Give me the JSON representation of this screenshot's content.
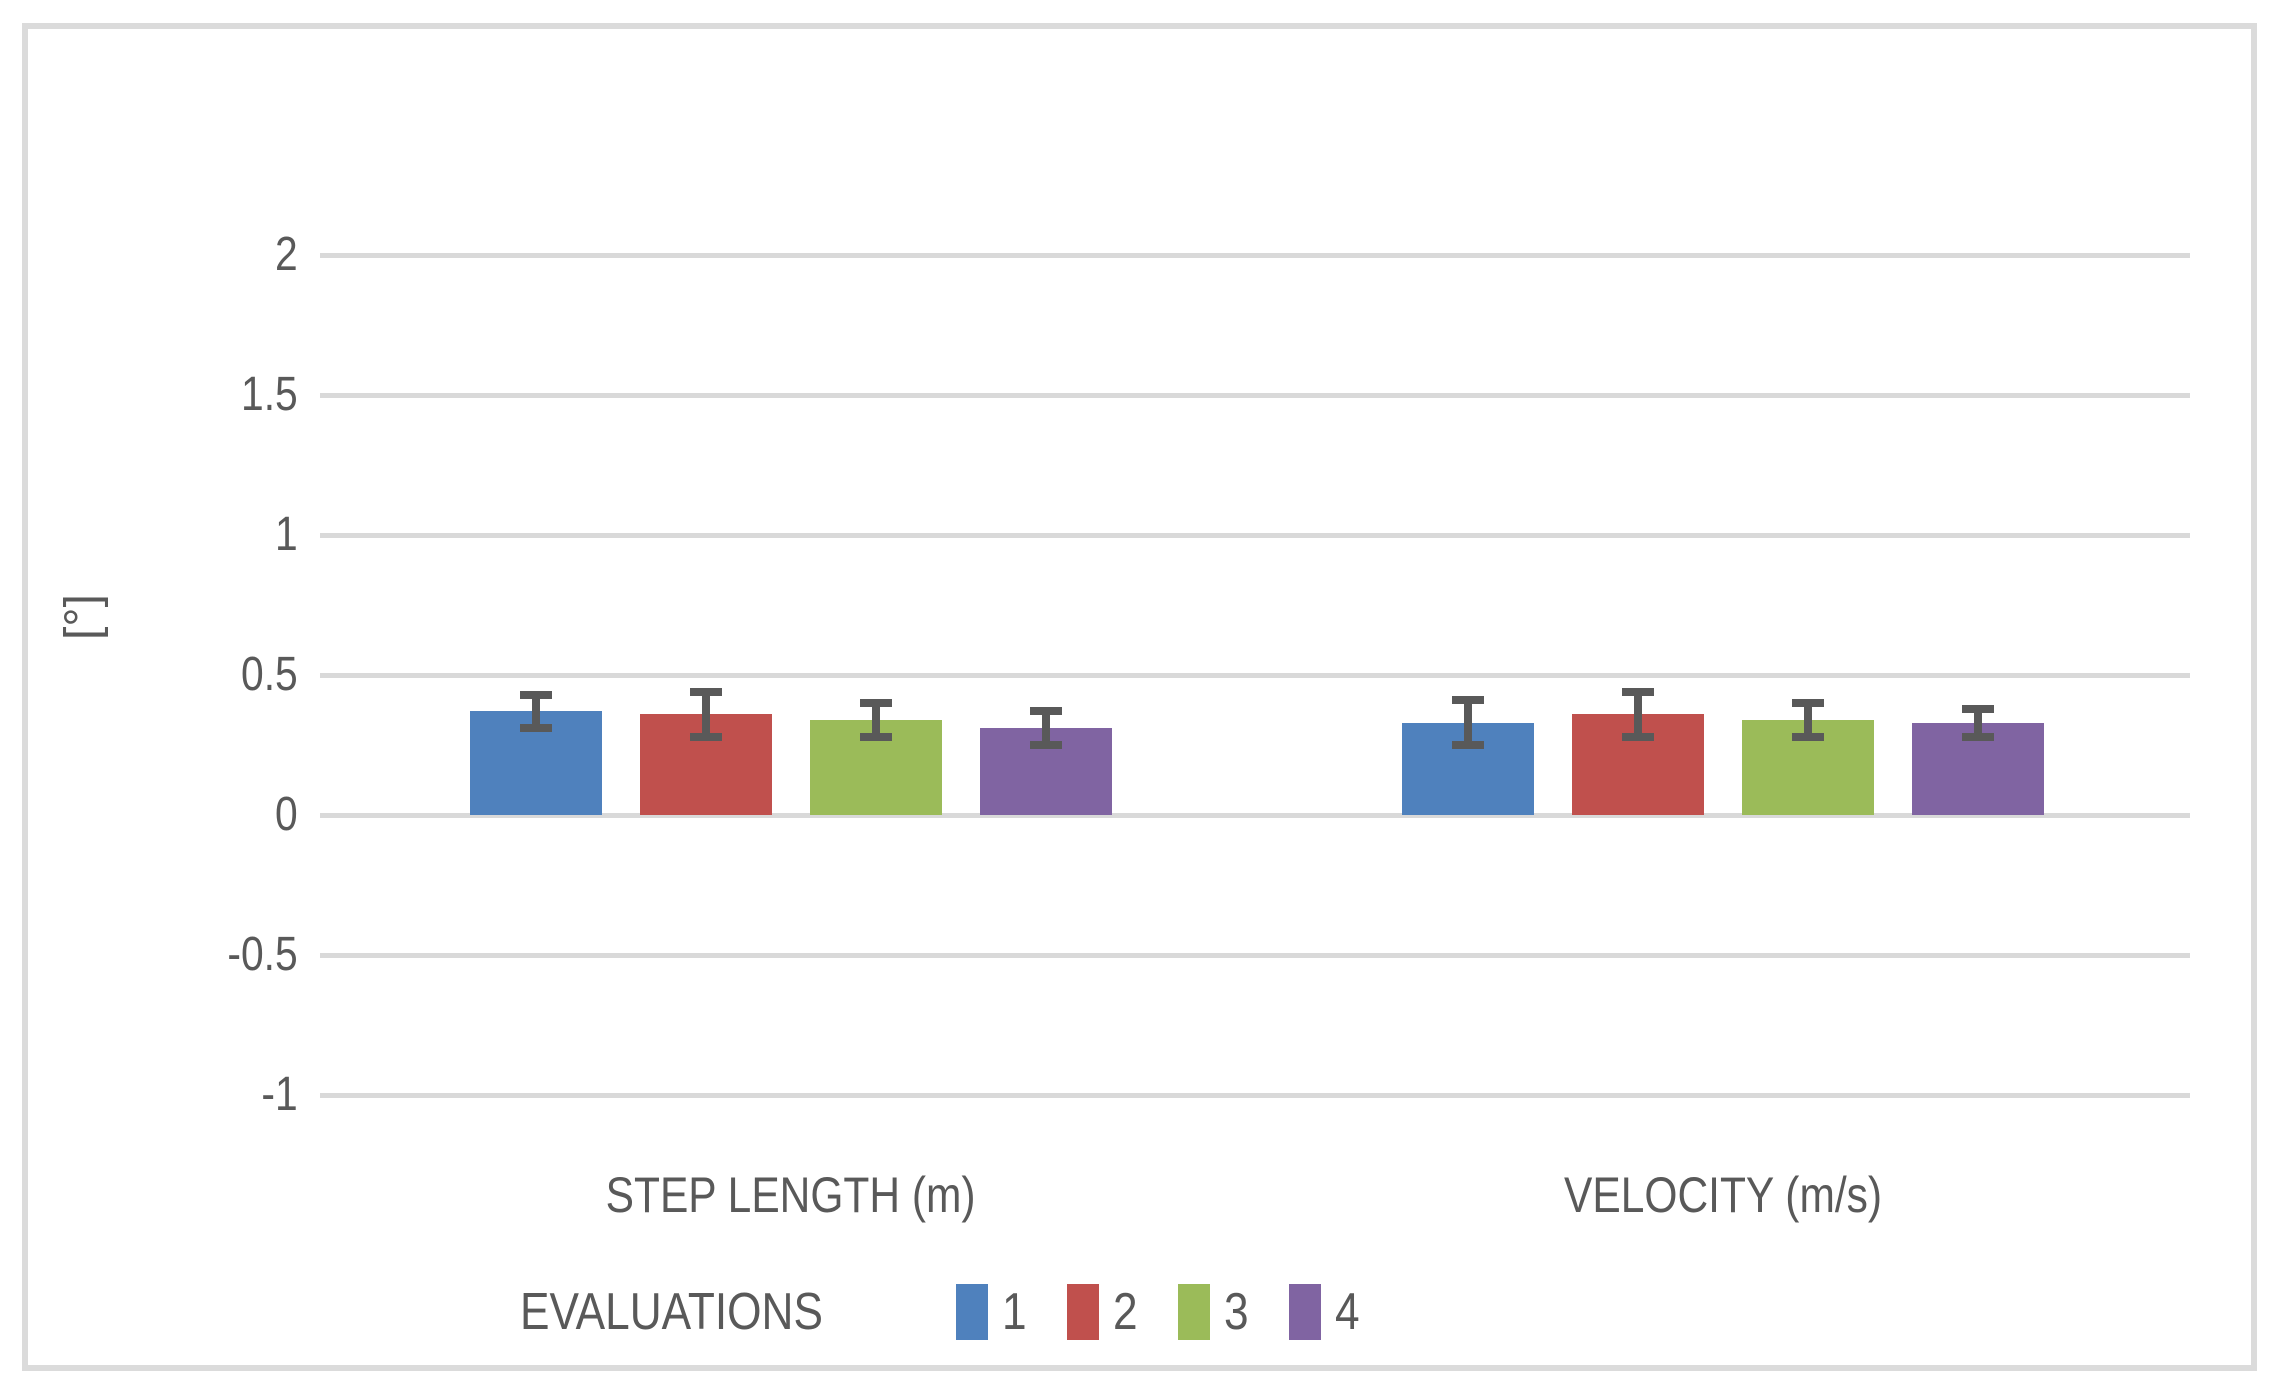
{
  "chart_data": {
    "type": "bar",
    "title": "",
    "ylabel": "[°]",
    "categories": [
      "STEP LENGTH (m)",
      "VELOCITY  (m/s)"
    ],
    "series": [
      {
        "name": "1",
        "color": "#4F81BD",
        "values": [
          0.37,
          0.33
        ],
        "errors": [
          0.06,
          0.08
        ]
      },
      {
        "name": "2",
        "color": "#C0504D",
        "values": [
          0.36,
          0.36
        ],
        "errors": [
          0.08,
          0.08
        ]
      },
      {
        "name": "3",
        "color": "#9BBB59",
        "values": [
          0.34,
          0.34
        ],
        "errors": [
          0.06,
          0.06
        ]
      },
      {
        "name": "4",
        "color": "#8064A2",
        "values": [
          0.31,
          0.33
        ],
        "errors": [
          0.06,
          0.05
        ]
      }
    ],
    "yticks": [
      2,
      1.5,
      1,
      0.5,
      0,
      -0.5,
      -1
    ],
    "ytick_labels": [
      "2",
      "1.5",
      "1",
      "0.5",
      "0",
      "-0.5",
      "-1"
    ],
    "ylim": [
      -1,
      2
    ],
    "grid": true,
    "legend_title": "EVALUATIONS",
    "legend_position": "bottom",
    "error_bars": true,
    "colors": {
      "grid": "#D9D9D9",
      "text": "#595959",
      "error_bar": "#595959",
      "frame_border": "#DBDBDB",
      "background": "#FFFFFF"
    }
  }
}
